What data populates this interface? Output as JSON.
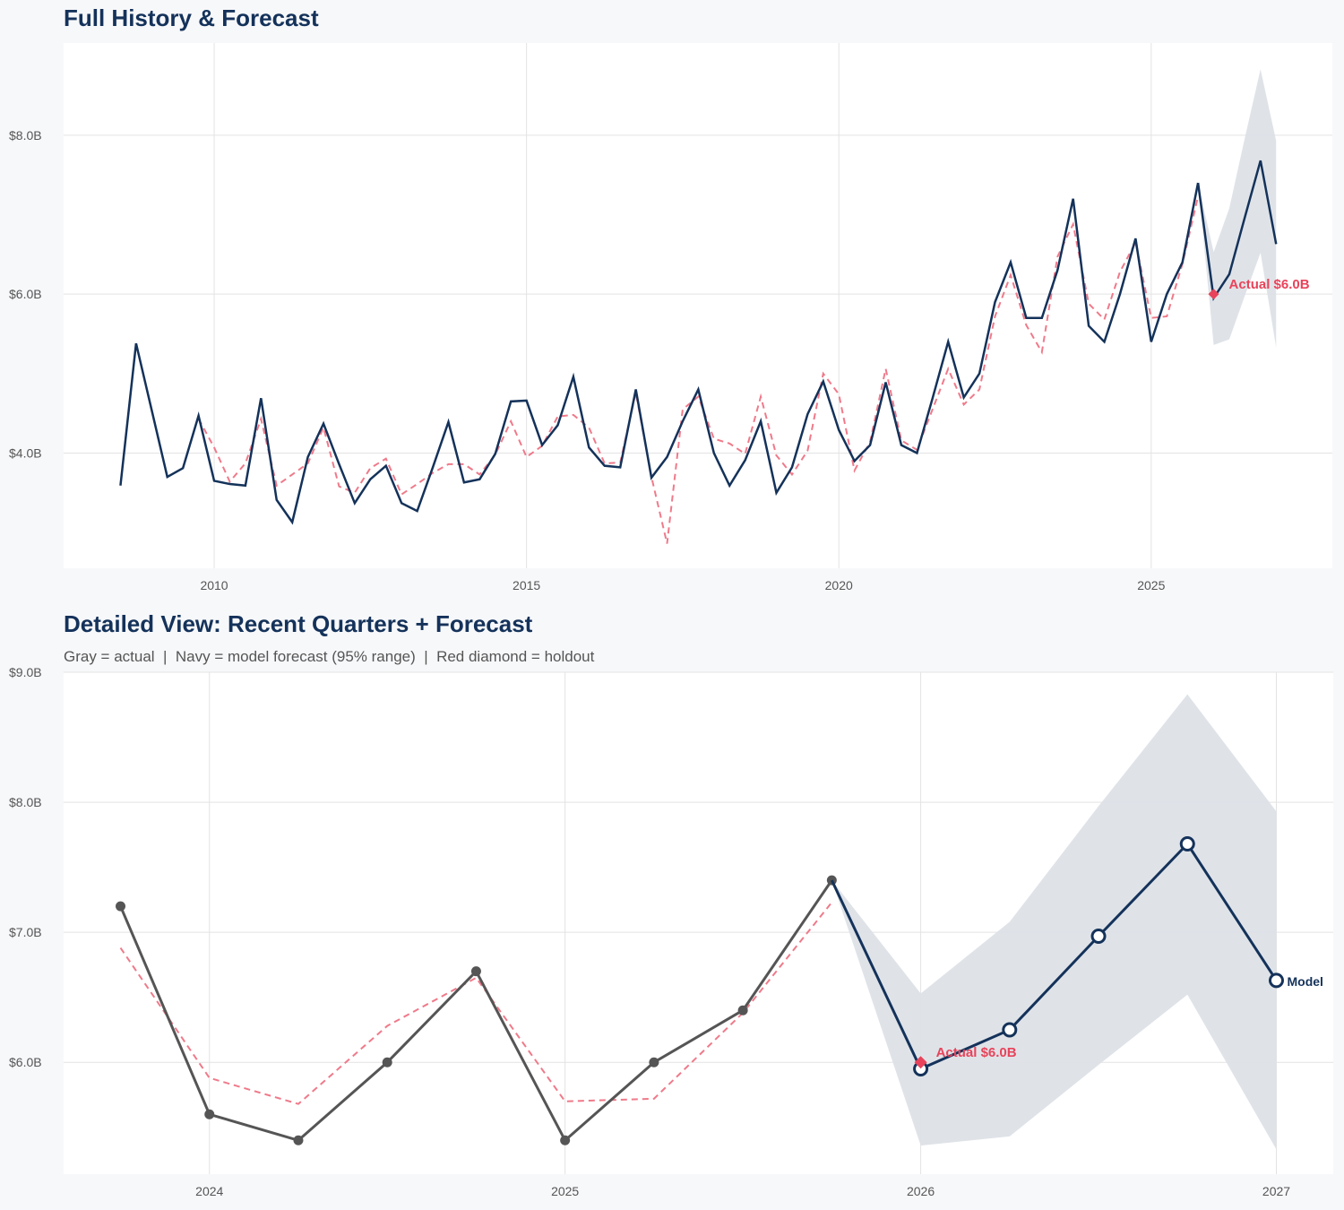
{
  "colors": {
    "navy": "#14325a",
    "actual_gray": "#555555",
    "fit_red": "#ef7a8a",
    "holdout_red": "#e8435a",
    "band": "#dde1e7",
    "grid": "#e3e3e3"
  },
  "chart_data": [
    {
      "type": "line",
      "title": "Full History & Forecast",
      "xlim": [
        2007.59,
        2027.9
      ],
      "ylim": [
        2.55,
        9.16
      ],
      "grid": true,
      "x_ticks": [
        2010,
        2015,
        2020,
        2025
      ],
      "x_tick_labels": [
        "2010",
        "2015",
        "2020",
        "2025"
      ],
      "y_ticks": [
        4,
        6,
        8
      ],
      "y_tick_labels": [
        "$4.0B",
        "$6.0B",
        "$8.0B"
      ],
      "actual": {
        "x_start": 2008.5,
        "step": 0.25,
        "values": [
          3.59,
          5.38,
          4.54,
          3.7,
          3.81,
          4.47,
          3.65,
          3.61,
          3.59,
          4.69,
          3.41,
          3.13,
          3.95,
          4.37,
          3.86,
          3.37,
          3.67,
          3.84,
          3.37,
          3.27,
          3.82,
          4.39,
          3.63,
          3.67,
          3.99,
          4.65,
          4.66,
          4.1,
          4.35,
          4.96,
          4.07,
          3.84,
          3.82,
          4.8,
          3.69,
          3.95,
          4.4,
          4.8,
          4.0,
          3.59,
          3.91,
          4.4,
          3.5,
          3.82,
          4.49,
          4.9,
          4.29,
          3.9,
          4.1,
          4.89,
          4.1,
          4.0,
          4.69,
          5.4,
          4.7,
          5.0,
          5.9,
          6.4,
          5.7,
          5.7,
          6.3,
          7.2,
          5.6,
          5.4,
          6.0,
          6.7,
          5.4,
          6.0,
          6.4,
          7.4
        ]
      },
      "fitted": {
        "x_start": 2009.75,
        "step": 0.25,
        "values": [
          4.43,
          4.07,
          3.64,
          3.87,
          4.43,
          3.59,
          3.73,
          3.87,
          4.32,
          3.58,
          3.5,
          3.81,
          3.93,
          3.48,
          3.61,
          3.75,
          3.86,
          3.86,
          3.73,
          3.98,
          4.4,
          3.95,
          4.09,
          4.46,
          4.48,
          4.32,
          3.87,
          3.88,
          4.76,
          3.7,
          2.86,
          4.55,
          4.71,
          4.18,
          4.12,
          3.99,
          4.71,
          3.97,
          3.73,
          4.03,
          5.0,
          4.74,
          3.78,
          4.14,
          5.06,
          4.16,
          4.04,
          4.55,
          5.06,
          4.61,
          4.8,
          5.72,
          6.24,
          5.61,
          5.27,
          6.47,
          6.88,
          5.88,
          5.68,
          6.28,
          6.65,
          5.7,
          5.72,
          6.38,
          7.23
        ]
      },
      "forecast": {
        "x": [
          2025.75,
          2026,
          2026.25,
          2026.5,
          2026.75,
          2027
        ],
        "values": [
          7.4,
          5.95,
          6.25,
          6.97,
          7.68,
          6.63
        ],
        "upper": [
          7.4,
          6.53,
          7.08,
          7.97,
          8.83,
          7.93
        ],
        "lower": [
          7.4,
          5.36,
          5.43,
          5.98,
          6.52,
          5.33
        ]
      },
      "holdout": {
        "x": 2026,
        "value": 6.0,
        "label": "Actual $6.0B"
      }
    },
    {
      "type": "line",
      "title": "Detailed View: Recent Quarters + Forecast",
      "subtitle": "Gray = actual  |  Navy = model forecast (95% range)  |  Red diamond = holdout",
      "xlim": [
        2023.59,
        2027.16
      ],
      "ylim": [
        5.14,
        9.0
      ],
      "grid": true,
      "x_ticks": [
        2024,
        2025,
        2026,
        2027
      ],
      "x_tick_labels": [
        "2024",
        "2025",
        "2026",
        "2027"
      ],
      "y_ticks": [
        6,
        7,
        8,
        9
      ],
      "y_tick_labels": [
        "$6.0B",
        "$7.0B",
        "$8.0B",
        "$9.0B"
      ],
      "actual": {
        "x_start": 2023.75,
        "step": 0.25,
        "values": [
          7.2,
          5.6,
          5.4,
          6.0,
          6.7,
          5.4,
          6.0,
          6.4,
          7.4
        ]
      },
      "fitted": {
        "x_start": 2023.75,
        "step": 0.25,
        "values": [
          6.88,
          5.88,
          5.68,
          6.28,
          6.65,
          5.7,
          5.72,
          6.38,
          7.23
        ]
      },
      "forecast": {
        "x": [
          2025.75,
          2026,
          2026.25,
          2026.5,
          2026.75,
          2027
        ],
        "values": [
          7.4,
          5.95,
          6.25,
          6.97,
          7.68,
          6.63
        ],
        "upper": [
          7.4,
          6.53,
          7.08,
          7.97,
          8.83,
          7.93
        ],
        "lower": [
          7.4,
          5.36,
          5.43,
          5.98,
          6.52,
          5.33
        ],
        "label": "Model"
      },
      "holdout": {
        "x": 2026,
        "value": 6.0,
        "label": "Actual $6.0B"
      }
    }
  ]
}
